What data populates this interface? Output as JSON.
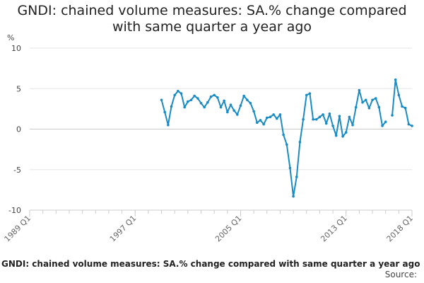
{
  "chart_data": {
    "type": "line",
    "title_lines": [
      "GNDI: chained volume measures: SA.% change compared",
      "with same quarter a year ago"
    ],
    "ylabel": "%",
    "ylim": [
      -10,
      10
    ],
    "yticks": [
      10,
      5,
      0,
      -5,
      -10
    ],
    "xlim": [
      1989,
      2018
    ],
    "xticks": [
      {
        "label": "1989 Q1",
        "x": 1989
      },
      {
        "label": "1997 Q1",
        "x": 1997
      },
      {
        "label": "2005 Q1",
        "x": 2005
      },
      {
        "label": "2013 Q1",
        "x": 2013
      },
      {
        "label": "2018 Q1",
        "x": 2018
      }
    ],
    "grid": true,
    "series": [
      {
        "name": "GNDI: chained volume measures: SA.% change compared with same quarter a year ago",
        "color": "#1a8bc4",
        "start_year": 1999.0,
        "step": 0.25,
        "values": [
          3.6,
          2.1,
          0.5,
          2.8,
          4.2,
          4.7,
          4.4,
          2.7,
          3.4,
          3.6,
          4.1,
          3.8,
          3.2,
          2.7,
          3.3,
          4.0,
          4.2,
          3.9,
          2.7,
          3.5,
          2.1,
          3.0,
          2.3,
          1.8,
          2.9,
          4.1,
          3.6,
          3.2,
          2.2,
          0.8,
          1.1,
          0.6,
          1.4,
          1.5,
          1.8,
          1.3,
          1.8,
          -0.7,
          -1.9,
          -4.8,
          -8.3,
          -5.9,
          -1.6,
          1.2,
          4.2,
          4.4,
          1.2,
          1.2,
          1.5,
          1.8,
          0.7,
          1.9,
          0.4,
          -0.8,
          1.6,
          -0.9,
          -0.4,
          1.5,
          0.5,
          2.7,
          4.8,
          3.3,
          3.6,
          2.6,
          3.6,
          3.8,
          2.7,
          0.4,
          0.9,
          null,
          1.7,
          6.1,
          4.2,
          2.8,
          2.6,
          0.6,
          0.4
        ]
      }
    ]
  },
  "legend_caption": "GNDI: chained volume measures: SA.% change compared with same quarter a year ago",
  "source_label": "Source:"
}
